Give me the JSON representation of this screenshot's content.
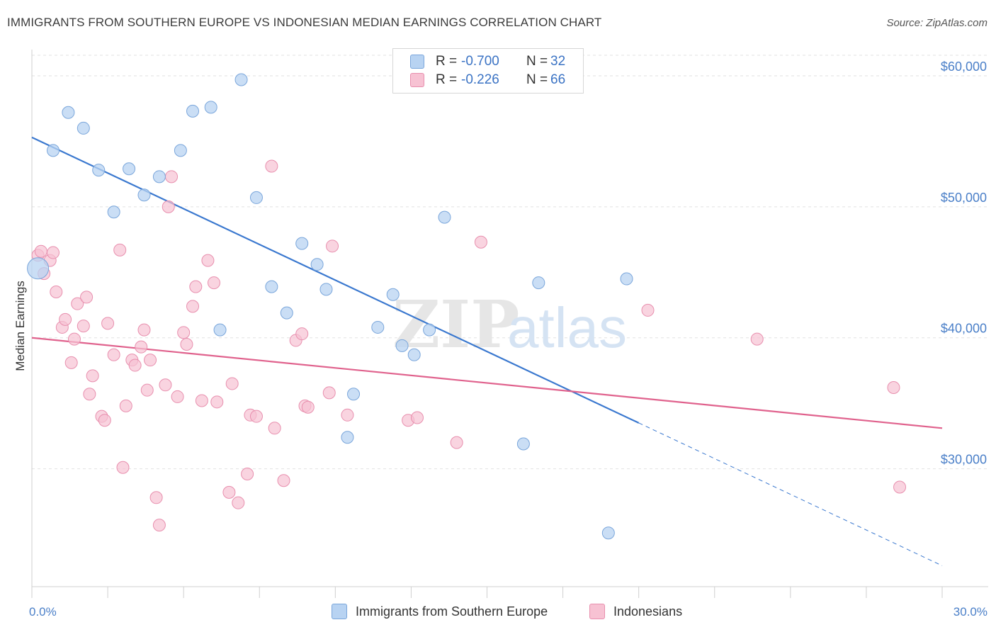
{
  "title": "IMMIGRANTS FROM SOUTHERN EUROPE VS INDONESIAN MEDIAN EARNINGS CORRELATION CHART",
  "source": "Source: ZipAtlas.com",
  "watermark": {
    "zip": "ZIP",
    "atlas": "atlas"
  },
  "legend": {
    "series1": {
      "r_label": "R =",
      "r_value": "-0.700",
      "n_label": "N =",
      "n_value": "32"
    },
    "series2": {
      "r_label": "R =",
      "r_value": "-0.226",
      "n_label": "N =",
      "n_value": "66"
    }
  },
  "colors": {
    "blue_fill": "#b8d3f2",
    "blue_stroke": "#7aa6db",
    "blue_line": "#3a78cf",
    "pink_fill": "#f7c2d3",
    "pink_stroke": "#e88fae",
    "pink_line": "#e0628d",
    "grid": "#e2e2e2",
    "axis_text": "#4a7fc8"
  },
  "chart_data": {
    "type": "scatter",
    "title": "IMMIGRANTS FROM SOUTHERN EUROPE VS INDONESIAN MEDIAN EARNINGS CORRELATION CHART",
    "xlabel": "",
    "ylabel": "Median Earnings",
    "xlim": [
      0,
      30
    ],
    "ylim": [
      21000,
      62000
    ],
    "x_tick_labels": [
      "0.0%",
      "30.0%"
    ],
    "y_ticks": [
      30000,
      40000,
      50000,
      60000
    ],
    "y_tick_labels": [
      "$30,000",
      "$40,000",
      "$50,000",
      "$60,000"
    ],
    "grid": true,
    "legend_position": "bottom",
    "series": [
      {
        "name": "Immigrants from Southern Europe",
        "color": "#b8d3f2",
        "trend": {
          "x0": 0,
          "y0": 55300,
          "x1": 20.0,
          "y1": 33500,
          "dashed_to_x": 30,
          "dashed_to_y": 22600
        },
        "points": [
          {
            "x": 0.2,
            "y": 45300,
            "big": true
          },
          {
            "x": 0.7,
            "y": 54300
          },
          {
            "x": 1.2,
            "y": 57200
          },
          {
            "x": 1.7,
            "y": 56000
          },
          {
            "x": 2.2,
            "y": 52800
          },
          {
            "x": 2.7,
            "y": 49600
          },
          {
            "x": 3.2,
            "y": 52900
          },
          {
            "x": 3.7,
            "y": 50900
          },
          {
            "x": 4.2,
            "y": 52300
          },
          {
            "x": 4.9,
            "y": 54300
          },
          {
            "x": 5.3,
            "y": 57300
          },
          {
            "x": 5.9,
            "y": 57600
          },
          {
            "x": 6.2,
            "y": 40600
          },
          {
            "x": 6.9,
            "y": 59700
          },
          {
            "x": 7.4,
            "y": 50700
          },
          {
            "x": 7.9,
            "y": 43900
          },
          {
            "x": 8.4,
            "y": 41900
          },
          {
            "x": 8.9,
            "y": 47200
          },
          {
            "x": 9.4,
            "y": 45600
          },
          {
            "x": 9.7,
            "y": 43700
          },
          {
            "x": 10.6,
            "y": 35700
          },
          {
            "x": 10.4,
            "y": 32400
          },
          {
            "x": 11.4,
            "y": 40800
          },
          {
            "x": 11.9,
            "y": 43300
          },
          {
            "x": 12.2,
            "y": 39400
          },
          {
            "x": 12.6,
            "y": 38700
          },
          {
            "x": 13.1,
            "y": 40600
          },
          {
            "x": 13.6,
            "y": 49200
          },
          {
            "x": 16.2,
            "y": 31900
          },
          {
            "x": 16.7,
            "y": 44200
          },
          {
            "x": 19.0,
            "y": 25100
          },
          {
            "x": 19.6,
            "y": 44500
          }
        ]
      },
      {
        "name": "Indonesians",
        "color": "#f7c2d3",
        "trend": {
          "x0": 0,
          "y0": 40000,
          "x1": 30,
          "y1": 33100
        },
        "points": [
          {
            "x": 0.2,
            "y": 46300
          },
          {
            "x": 0.3,
            "y": 46600
          },
          {
            "x": 0.4,
            "y": 44900
          },
          {
            "x": 0.6,
            "y": 45900
          },
          {
            "x": 0.7,
            "y": 46500
          },
          {
            "x": 0.8,
            "y": 43500
          },
          {
            "x": 1.0,
            "y": 40800
          },
          {
            "x": 1.1,
            "y": 41400
          },
          {
            "x": 1.3,
            "y": 38100
          },
          {
            "x": 1.4,
            "y": 39900
          },
          {
            "x": 1.5,
            "y": 42600
          },
          {
            "x": 1.7,
            "y": 40900
          },
          {
            "x": 1.8,
            "y": 43100
          },
          {
            "x": 1.9,
            "y": 35700
          },
          {
            "x": 2.0,
            "y": 37100
          },
          {
            "x": 2.3,
            "y": 34000
          },
          {
            "x": 2.4,
            "y": 33700
          },
          {
            "x": 2.5,
            "y": 41100
          },
          {
            "x": 2.7,
            "y": 38700
          },
          {
            "x": 2.9,
            "y": 46700
          },
          {
            "x": 3.0,
            "y": 30100
          },
          {
            "x": 3.1,
            "y": 34800
          },
          {
            "x": 3.3,
            "y": 38300
          },
          {
            "x": 3.4,
            "y": 37900
          },
          {
            "x": 3.6,
            "y": 39300
          },
          {
            "x": 3.7,
            "y": 40600
          },
          {
            "x": 3.8,
            "y": 36000
          },
          {
            "x": 3.9,
            "y": 38300
          },
          {
            "x": 4.1,
            "y": 27800
          },
          {
            "x": 4.2,
            "y": 25700
          },
          {
            "x": 4.4,
            "y": 36400
          },
          {
            "x": 4.5,
            "y": 50000
          },
          {
            "x": 4.6,
            "y": 52300
          },
          {
            "x": 4.8,
            "y": 35500
          },
          {
            "x": 5.0,
            "y": 40400
          },
          {
            "x": 5.1,
            "y": 39500
          },
          {
            "x": 5.3,
            "y": 42400
          },
          {
            "x": 5.4,
            "y": 43900
          },
          {
            "x": 5.6,
            "y": 35200
          },
          {
            "x": 5.8,
            "y": 45900
          },
          {
            "x": 6.0,
            "y": 44200
          },
          {
            "x": 6.1,
            "y": 35100
          },
          {
            "x": 6.5,
            "y": 28200
          },
          {
            "x": 6.6,
            "y": 36500
          },
          {
            "x": 6.8,
            "y": 27400
          },
          {
            "x": 7.1,
            "y": 29600
          },
          {
            "x": 7.2,
            "y": 34100
          },
          {
            "x": 7.4,
            "y": 34000
          },
          {
            "x": 7.9,
            "y": 53100
          },
          {
            "x": 8.0,
            "y": 33100
          },
          {
            "x": 8.3,
            "y": 29100
          },
          {
            "x": 8.7,
            "y": 39800
          },
          {
            "x": 8.9,
            "y": 40300
          },
          {
            "x": 9.0,
            "y": 34800
          },
          {
            "x": 9.1,
            "y": 34700
          },
          {
            "x": 9.8,
            "y": 35800
          },
          {
            "x": 9.9,
            "y": 47000
          },
          {
            "x": 10.4,
            "y": 34100
          },
          {
            "x": 12.4,
            "y": 33700
          },
          {
            "x": 12.7,
            "y": 33900
          },
          {
            "x": 14.0,
            "y": 32000
          },
          {
            "x": 14.8,
            "y": 47300
          },
          {
            "x": 20.3,
            "y": 42100
          },
          {
            "x": 23.9,
            "y": 39900
          },
          {
            "x": 28.4,
            "y": 36200
          },
          {
            "x": 28.6,
            "y": 28600
          }
        ]
      }
    ]
  },
  "bottom_legend": {
    "item1": "Immigrants from Southern Europe",
    "item2": "Indonesians"
  }
}
